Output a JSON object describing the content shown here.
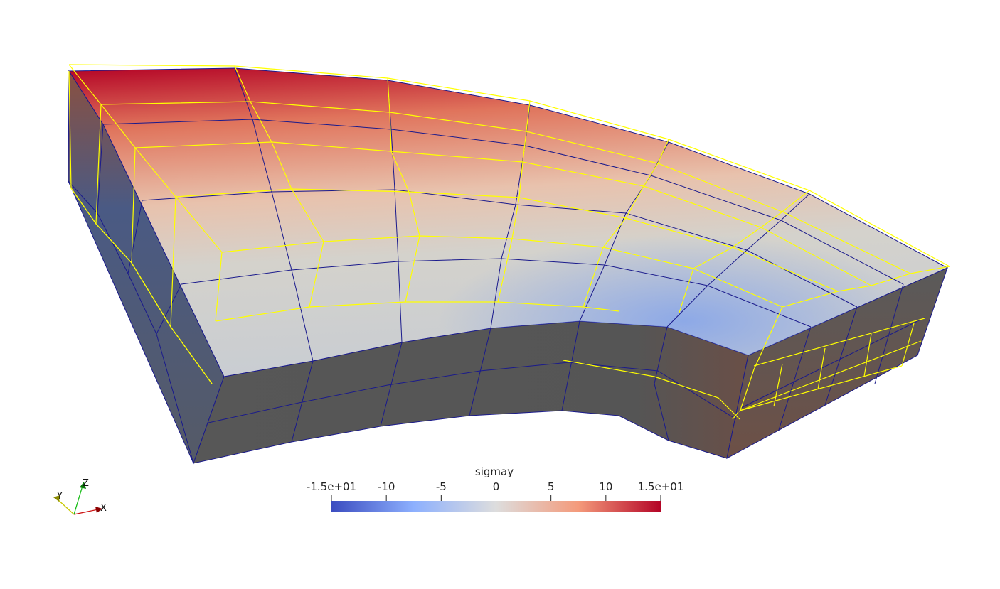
{
  "scalar_bar": {
    "title": "sigmay",
    "ticks": [
      {
        "label": "-1.5e+01",
        "value": -15
      },
      {
        "label": "-10",
        "value": -10
      },
      {
        "label": "-5",
        "value": -5
      },
      {
        "label": "0",
        "value": 0
      },
      {
        "label": "5",
        "value": 5
      },
      {
        "label": "10",
        "value": 10
      },
      {
        "label": "1.5e+01",
        "value": 15
      }
    ],
    "range": [
      -15,
      15
    ],
    "colormap": [
      "#3b4cc0",
      "#8db0fe",
      "#dddddd",
      "#f49a7b",
      "#b40426"
    ]
  },
  "orientation_axes": {
    "x_label": "X",
    "y_label": "Y",
    "z_label": "Z",
    "x_color": "#cc1111",
    "y_color": "#c8c800",
    "z_color": "#11bb11"
  },
  "mesh": {
    "edge_color": "#1a1a8c",
    "undeformed_wireframe_color": "#ffff00",
    "side_color": "#5a5a5a"
  }
}
